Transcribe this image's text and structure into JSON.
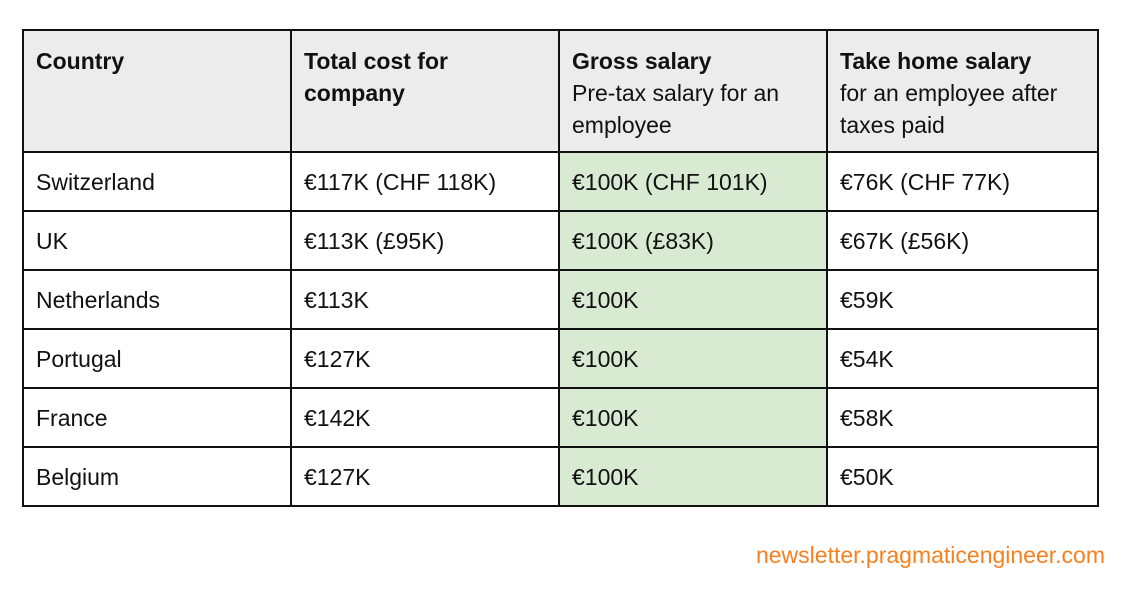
{
  "table": {
    "headers": [
      {
        "title": "Country",
        "subtitle": ""
      },
      {
        "title": "Total cost for company",
        "subtitle": ""
      },
      {
        "title": "Gross salary",
        "subtitle": "Pre-tax salary for an employee"
      },
      {
        "title": "Take home salary",
        "subtitle": "for an employee after taxes paid"
      }
    ],
    "rows": [
      {
        "country": "Switzerland",
        "total_cost": "€117K (CHF 118K)",
        "gross": "€100K (CHF 101K)",
        "take_home": "€76K (CHF 77K)"
      },
      {
        "country": "UK",
        "total_cost": "€113K (£95K)",
        "gross": "€100K (£83K)",
        "take_home": "€67K (£56K)"
      },
      {
        "country": "Netherlands",
        "total_cost": "€113K",
        "gross": "€100K",
        "take_home": "€59K"
      },
      {
        "country": "Portugal",
        "total_cost": "€127K",
        "gross": "€100K",
        "take_home": "€54K"
      },
      {
        "country": "France",
        "total_cost": "€142K",
        "gross": "€100K",
        "take_home": "€58K"
      },
      {
        "country": "Belgium",
        "total_cost": "€127K",
        "gross": "€100K",
        "take_home": "€50K"
      }
    ],
    "highlight_color": "#d9ead3",
    "header_background": "#ececec"
  },
  "footer": {
    "source": "newsletter.pragmaticengineer.com",
    "color": "#f4811f"
  }
}
